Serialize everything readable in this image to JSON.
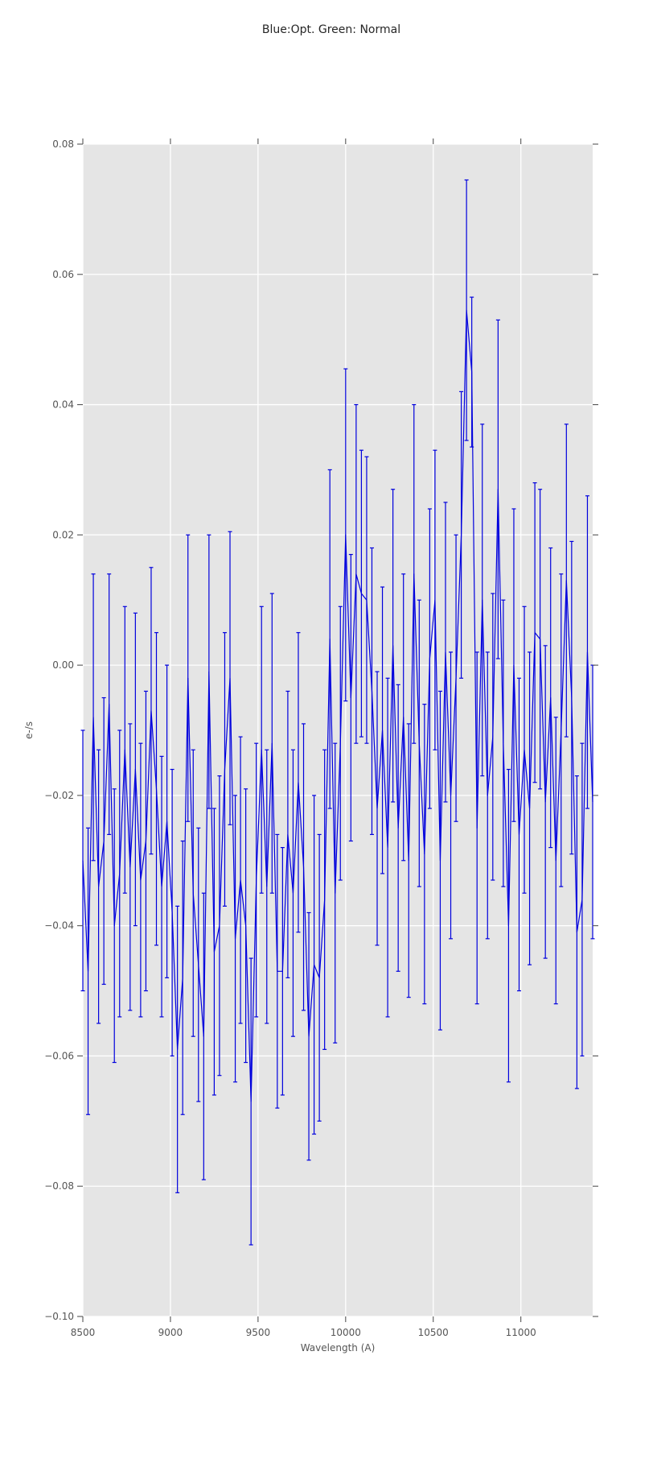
{
  "title": "Blue:Opt. Green: Normal",
  "chart_data": {
    "type": "line",
    "title": "Blue:Opt. Green: Normal",
    "xlabel": "Wavelength (A)",
    "ylabel": "e-/s",
    "xlim": [
      8500,
      11410
    ],
    "ylim": [
      -0.1,
      0.08
    ],
    "grid": true,
    "legend": "none",
    "x_ticks": [
      8500,
      9000,
      9500,
      10000,
      10500,
      11000
    ],
    "x_tick_labels": [
      "8500",
      "9000",
      "9500",
      "10000",
      "10500",
      "11000"
    ],
    "y_ticks": [
      0.08,
      0.06,
      0.04,
      0.02,
      0.0,
      -0.02,
      -0.04,
      -0.06,
      -0.08,
      -0.1
    ],
    "y_tick_labels": [
      "0.08",
      "0.06",
      "0.04",
      "0.02",
      "0.00",
      "−0.02",
      "−0.04",
      "−0.06",
      "−0.08",
      "−0.10"
    ],
    "style": {
      "plot_bg": "#e5e5e5",
      "grid_color": "#ffffff",
      "line_color": "#0000dd",
      "tick_color": "#555555",
      "text_color": "#555555",
      "title_color": "#262626",
      "figure_bg": "#ffffff"
    },
    "series": [
      {
        "name": "spectrum-errorbar-series",
        "x": [
          8500,
          8530,
          8560,
          8590,
          8620,
          8650,
          8680,
          8710,
          8740,
          8770,
          8800,
          8830,
          8860,
          8890,
          8920,
          8950,
          8980,
          9010,
          9040,
          9070,
          9100,
          9130,
          9160,
          9190,
          9220,
          9250,
          9280,
          9310,
          9340,
          9370,
          9400,
          9430,
          9460,
          9490,
          9520,
          9550,
          9580,
          9610,
          9640,
          9670,
          9700,
          9730,
          9760,
          9790,
          9820,
          9850,
          9880,
          9910,
          9940,
          9970,
          10000,
          10030,
          10060,
          10090,
          10120,
          10150,
          10180,
          10210,
          10240,
          10270,
          10300,
          10330,
          10360,
          10390,
          10420,
          10450,
          10480,
          10510,
          10540,
          10570,
          10600,
          10630,
          10660,
          10690,
          10720,
          10750,
          10780,
          10810,
          10840,
          10870,
          10900,
          10930,
          10960,
          10990,
          11020,
          11050,
          11080,
          11110,
          11140,
          11170,
          11200,
          11230,
          11260,
          11290,
          11320,
          11350,
          11380,
          11410
        ],
        "y": [
          -0.03,
          -0.047,
          -0.008,
          -0.034,
          -0.027,
          -0.006,
          -0.04,
          -0.032,
          -0.013,
          -0.031,
          -0.016,
          -0.033,
          -0.027,
          -0.007,
          -0.019,
          -0.034,
          -0.024,
          -0.038,
          -0.059,
          -0.048,
          -0.002,
          -0.035,
          -0.046,
          -0.057,
          -0.001,
          -0.044,
          -0.04,
          -0.016,
          -0.002,
          -0.042,
          -0.033,
          -0.04,
          -0.067,
          -0.033,
          -0.013,
          -0.034,
          -0.012,
          -0.047,
          -0.047,
          -0.026,
          -0.035,
          -0.018,
          -0.031,
          -0.057,
          -0.046,
          -0.048,
          -0.036,
          0.004,
          -0.035,
          -0.012,
          0.02,
          -0.005,
          0.014,
          0.011,
          0.01,
          -0.004,
          -0.022,
          -0.01,
          -0.028,
          0.003,
          -0.025,
          -0.008,
          -0.03,
          0.014,
          -0.012,
          -0.029,
          0.001,
          0.01,
          -0.03,
          0.002,
          -0.02,
          -0.002,
          0.02,
          0.0545,
          0.045,
          -0.025,
          0.01,
          -0.02,
          -0.011,
          0.027,
          -0.012,
          -0.04,
          0.0,
          -0.026,
          -0.013,
          -0.022,
          0.005,
          0.004,
          -0.021,
          -0.005,
          -0.03,
          -0.01,
          0.013,
          -0.005,
          -0.041,
          -0.036,
          0.002,
          -0.021
        ],
        "yerr": [
          0.02,
          0.022,
          0.022,
          0.021,
          0.022,
          0.02,
          0.021,
          0.022,
          0.022,
          0.022,
          0.024,
          0.021,
          0.023,
          0.022,
          0.024,
          0.02,
          0.024,
          0.022,
          0.022,
          0.021,
          0.022,
          0.022,
          0.021,
          0.022,
          0.021,
          0.022,
          0.023,
          0.021,
          0.0225,
          0.022,
          0.022,
          0.021,
          0.022,
          0.021,
          0.022,
          0.021,
          0.023,
          0.021,
          0.019,
          0.022,
          0.022,
          0.023,
          0.022,
          0.019,
          0.026,
          0.022,
          0.023,
          0.026,
          0.023,
          0.021,
          0.0255,
          0.022,
          0.026,
          0.022,
          0.022,
          0.022,
          0.021,
          0.022,
          0.026,
          0.024,
          0.022,
          0.022,
          0.021,
          0.026,
          0.022,
          0.023,
          0.023,
          0.023,
          0.026,
          0.023,
          0.022,
          0.022,
          0.022,
          0.02,
          0.0115,
          0.027,
          0.027,
          0.022,
          0.022,
          0.026,
          0.022,
          0.024,
          0.024,
          0.024,
          0.022,
          0.024,
          0.023,
          0.023,
          0.024,
          0.023,
          0.022,
          0.024,
          0.024,
          0.024,
          0.024,
          0.024,
          0.024,
          0.021
        ]
      }
    ]
  }
}
